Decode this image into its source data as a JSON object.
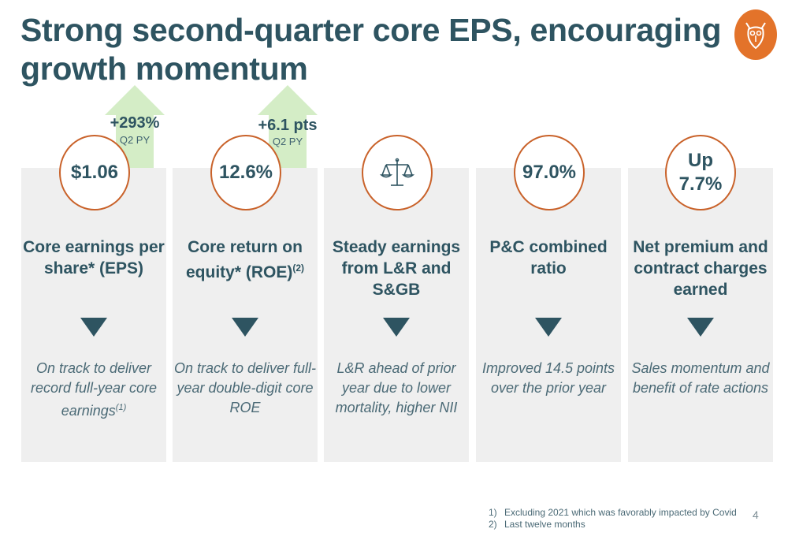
{
  "title": "Strong second-quarter core EPS, encouraging growth momentum",
  "logo": {
    "icon": "owl-icon",
    "color": "#e3732a"
  },
  "colors": {
    "accent": "#c9622a",
    "navy": "#2e5461",
    "panel": "#efefef",
    "arrow": "#d4edc6"
  },
  "arrows": [
    {
      "value": "+293%",
      "sub": "Q2 PY"
    },
    {
      "value": "+6.1 pts",
      "sub": "Q2 PY"
    }
  ],
  "cards": [
    {
      "metric": "$1.06",
      "heading": "Core earnings per share* (EPS)",
      "heading_sup": "",
      "desc": "On track to deliver record full-year core earnings",
      "desc_sup": "(1)"
    },
    {
      "metric": "12.6%",
      "heading": "Core return on equity* (ROE)",
      "heading_sup": "(2)",
      "desc": "On track to deliver full-year double-digit core ROE",
      "desc_sup": ""
    },
    {
      "metric": "",
      "icon": "scales-icon",
      "heading": "Steady earnings from L&R and S&GB",
      "heading_sup": "",
      "desc": "L&R ahead of prior year due to lower mortality, higher NII",
      "desc_sup": ""
    },
    {
      "metric": "97.0%",
      "heading": "P&C combined ratio",
      "heading_sup": "",
      "desc": "Improved 14.5 points over the prior year",
      "desc_sup": ""
    },
    {
      "metric": "Up 7.7%",
      "heading": "Net premium and contract charges earned",
      "heading_sup": "",
      "desc": "Sales momentum and benefit of rate actions",
      "desc_sup": ""
    }
  ],
  "footnotes": [
    {
      "num": "1)",
      "text": "Excluding 2021 which was favorably impacted by Covid"
    },
    {
      "num": "2)",
      "text": "Last twelve months"
    }
  ],
  "page_number": "4"
}
